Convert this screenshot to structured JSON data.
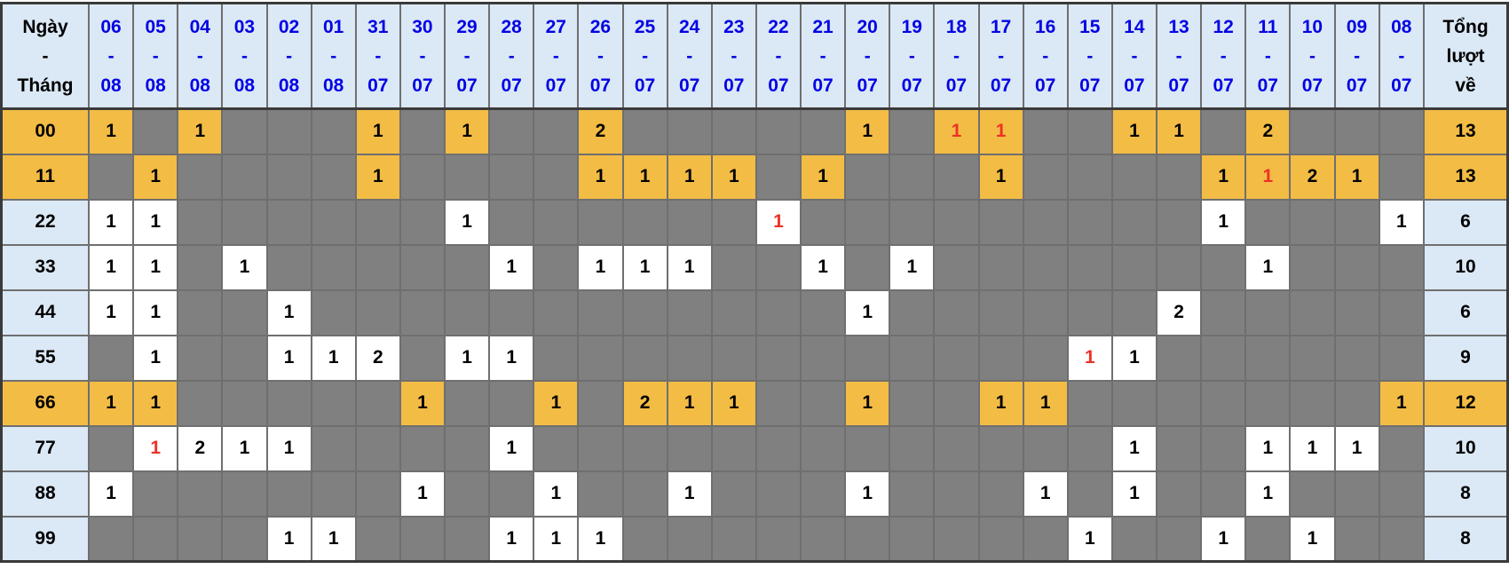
{
  "chart_data": {
    "type": "table",
    "corner_header": [
      "Ngày",
      "-",
      "Tháng"
    ],
    "total_header": [
      "Tổng",
      "lượt",
      "về"
    ],
    "date_separator": "-",
    "date_columns": [
      {
        "day": "06",
        "month": "08"
      },
      {
        "day": "05",
        "month": "08"
      },
      {
        "day": "04",
        "month": "08"
      },
      {
        "day": "03",
        "month": "08"
      },
      {
        "day": "02",
        "month": "08"
      },
      {
        "day": "01",
        "month": "08"
      },
      {
        "day": "31",
        "month": "07"
      },
      {
        "day": "30",
        "month": "07"
      },
      {
        "day": "29",
        "month": "07"
      },
      {
        "day": "28",
        "month": "07"
      },
      {
        "day": "27",
        "month": "07"
      },
      {
        "day": "26",
        "month": "07"
      },
      {
        "day": "25",
        "month": "07"
      },
      {
        "day": "24",
        "month": "07"
      },
      {
        "day": "23",
        "month": "07"
      },
      {
        "day": "22",
        "month": "07"
      },
      {
        "day": "21",
        "month": "07"
      },
      {
        "day": "20",
        "month": "07"
      },
      {
        "day": "19",
        "month": "07"
      },
      {
        "day": "18",
        "month": "07"
      },
      {
        "day": "17",
        "month": "07"
      },
      {
        "day": "16",
        "month": "07"
      },
      {
        "day": "15",
        "month": "07"
      },
      {
        "day": "14",
        "month": "07"
      },
      {
        "day": "13",
        "month": "07"
      },
      {
        "day": "12",
        "month": "07"
      },
      {
        "day": "11",
        "month": "07"
      },
      {
        "day": "10",
        "month": "07"
      },
      {
        "day": "09",
        "month": "07"
      },
      {
        "day": "08",
        "month": "07"
      }
    ],
    "rows": [
      {
        "label": "00",
        "highlight": true,
        "total": "13",
        "cells": [
          "1",
          "",
          "1",
          "",
          "",
          "",
          "1",
          "",
          "1",
          "",
          "",
          "2",
          "",
          "",
          "",
          "",
          "",
          "1",
          "",
          "1",
          "1",
          "",
          "",
          "1",
          "1",
          "",
          "2",
          "",
          "",
          ""
        ],
        "red_cols": [
          19,
          20
        ]
      },
      {
        "label": "11",
        "highlight": true,
        "total": "13",
        "cells": [
          "",
          "1",
          "",
          "",
          "",
          "",
          "1",
          "",
          "",
          "",
          "",
          "1",
          "1",
          "1",
          "1",
          "",
          "1",
          "",
          "",
          "",
          "1",
          "",
          "",
          "",
          "",
          "1",
          "1",
          "2",
          "1",
          ""
        ],
        "red_cols": [
          26
        ]
      },
      {
        "label": "22",
        "highlight": false,
        "total": "6",
        "cells": [
          "1",
          "1",
          "",
          "",
          "",
          "",
          "",
          "",
          "1",
          "",
          "",
          "",
          "",
          "",
          "",
          "1",
          "",
          "",
          "",
          "",
          "",
          "",
          "",
          "",
          "",
          "1",
          "",
          "",
          "",
          "1"
        ],
        "red_cols": [
          15
        ]
      },
      {
        "label": "33",
        "highlight": false,
        "total": "10",
        "cells": [
          "1",
          "1",
          "",
          "1",
          "",
          "",
          "",
          "",
          "",
          "1",
          "",
          "1",
          "1",
          "1",
          "",
          "",
          "1",
          "",
          "1",
          "",
          "",
          "",
          "",
          "",
          "",
          "",
          "1",
          "",
          "",
          ""
        ],
        "red_cols": []
      },
      {
        "label": "44",
        "highlight": false,
        "total": "6",
        "cells": [
          "1",
          "1",
          "",
          "",
          "1",
          "",
          "",
          "",
          "",
          "",
          "",
          "",
          "",
          "",
          "",
          "",
          "",
          "1",
          "",
          "",
          "",
          "",
          "",
          "",
          "2",
          "",
          "",
          "",
          "",
          ""
        ],
        "red_cols": []
      },
      {
        "label": "55",
        "highlight": false,
        "total": "9",
        "cells": [
          "",
          "1",
          "",
          "",
          "1",
          "1",
          "2",
          "",
          "1",
          "1",
          "",
          "",
          "",
          "",
          "",
          "",
          "",
          "",
          "",
          "",
          "",
          "",
          "1",
          "1",
          "",
          "",
          "",
          "",
          "",
          ""
        ],
        "red_cols": [
          22
        ]
      },
      {
        "label": "66",
        "highlight": true,
        "total": "12",
        "cells": [
          "1",
          "1",
          "",
          "",
          "",
          "",
          "",
          "1",
          "",
          "",
          "1",
          "",
          "2",
          "1",
          "1",
          "",
          "",
          "1",
          "",
          "",
          "1",
          "1",
          "",
          "",
          "",
          "",
          "",
          "",
          "",
          "1"
        ],
        "red_cols": []
      },
      {
        "label": "77",
        "highlight": false,
        "total": "10",
        "cells": [
          "",
          "1",
          "2",
          "1",
          "1",
          "",
          "",
          "",
          "",
          "1",
          "",
          "",
          "",
          "",
          "",
          "",
          "",
          "",
          "",
          "",
          "",
          "",
          "",
          "1",
          "",
          "",
          "1",
          "1",
          "1",
          ""
        ],
        "red_cols": [
          1
        ]
      },
      {
        "label": "88",
        "highlight": false,
        "total": "8",
        "cells": [
          "1",
          "",
          "",
          "",
          "",
          "",
          "",
          "1",
          "",
          "",
          "1",
          "",
          "",
          "1",
          "",
          "",
          "",
          "1",
          "",
          "",
          "",
          "1",
          "",
          "1",
          "",
          "",
          "1",
          "",
          "",
          ""
        ],
        "red_cols": []
      },
      {
        "label": "99",
        "highlight": false,
        "total": "8",
        "cells": [
          "",
          "",
          "",
          "",
          "1",
          "1",
          "",
          "",
          "",
          "1",
          "1",
          "1",
          "",
          "",
          "",
          "",
          "",
          "",
          "",
          "",
          "",
          "",
          "1",
          "",
          "",
          "1",
          "",
          "1",
          "",
          ""
        ],
        "red_cols": []
      }
    ]
  },
  "colors": {
    "header_bg": "#dbe8f6",
    "header_date_text": "#0303e3",
    "highlight_bg": "#f3bc45",
    "empty_cell_bg": "#808080",
    "filled_cell_bg": "#ffffff",
    "red_text": "#ee3126",
    "grid_line": "#6f6f6f",
    "outer_border": "#3a3a3a",
    "text": "#000000"
  }
}
